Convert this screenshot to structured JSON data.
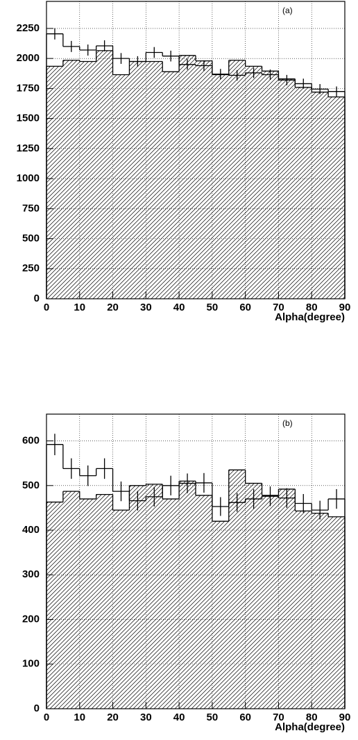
{
  "chart_data": [
    {
      "type": "histogram",
      "annotation": "(a)",
      "x_label": "Alpha(degree)",
      "bins": [
        0,
        5,
        10,
        15,
        20,
        25,
        30,
        35,
        40,
        45,
        50,
        55,
        60,
        65,
        70,
        75,
        80,
        85,
        90
      ],
      "series": [
        {
          "style": "hatched",
          "color": "#000000",
          "values": [
            1935,
            1985,
            1975,
            2065,
            1865,
            1975,
            1975,
            1890,
            2025,
            1980,
            1865,
            1985,
            1935,
            1895,
            1830,
            1760,
            1720,
            1680
          ]
        },
        {
          "style": "errorbar",
          "color": "#000000",
          "values": [
            2205,
            2100,
            2070,
            2105,
            2000,
            1975,
            2050,
            2020,
            1950,
            1940,
            1870,
            1860,
            1880,
            1865,
            1820,
            1790,
            1745,
            1725
          ],
          "errors": [
            47,
            46,
            46,
            46,
            45,
            44,
            45,
            45,
            44,
            44,
            43,
            43,
            43,
            43,
            43,
            42,
            42,
            42
          ]
        }
      ],
      "xlim": [
        0,
        90
      ],
      "xticks": [
        0,
        10,
        20,
        30,
        40,
        50,
        60,
        70,
        80,
        90
      ],
      "ylim": [
        0,
        2475
      ],
      "yticks": [
        0,
        250,
        500,
        750,
        1000,
        1250,
        1500,
        1750,
        2000,
        2250
      ],
      "grid": true
    },
    {
      "type": "histogram",
      "annotation": "(b)",
      "x_label": "Alpha(degree)",
      "bins": [
        0,
        5,
        10,
        15,
        20,
        25,
        30,
        35,
        40,
        45,
        50,
        55,
        60,
        65,
        70,
        75,
        80,
        85,
        90
      ],
      "series": [
        {
          "style": "hatched",
          "color": "#000000",
          "values": [
            463,
            487,
            470,
            480,
            445,
            500,
            503,
            470,
            510,
            478,
            420,
            535,
            505,
            478,
            492,
            443,
            438,
            430
          ]
        },
        {
          "style": "errorbar",
          "color": "#000000",
          "values": [
            592,
            538,
            522,
            538,
            487,
            466,
            475,
            500,
            505,
            506,
            453,
            462,
            470,
            476,
            472,
            460,
            445,
            470
          ],
          "errors": [
            24,
            23,
            23,
            23,
            22,
            22,
            22,
            22,
            22,
            22,
            21,
            21,
            22,
            22,
            22,
            21,
            21,
            22
          ]
        }
      ],
      "xlim": [
        0,
        90
      ],
      "xticks": [
        0,
        10,
        20,
        30,
        40,
        50,
        60,
        70,
        80,
        90
      ],
      "ylim": [
        0,
        660
      ],
      "yticks": [
        0,
        100,
        200,
        300,
        400,
        500,
        600
      ],
      "grid": true
    }
  ]
}
